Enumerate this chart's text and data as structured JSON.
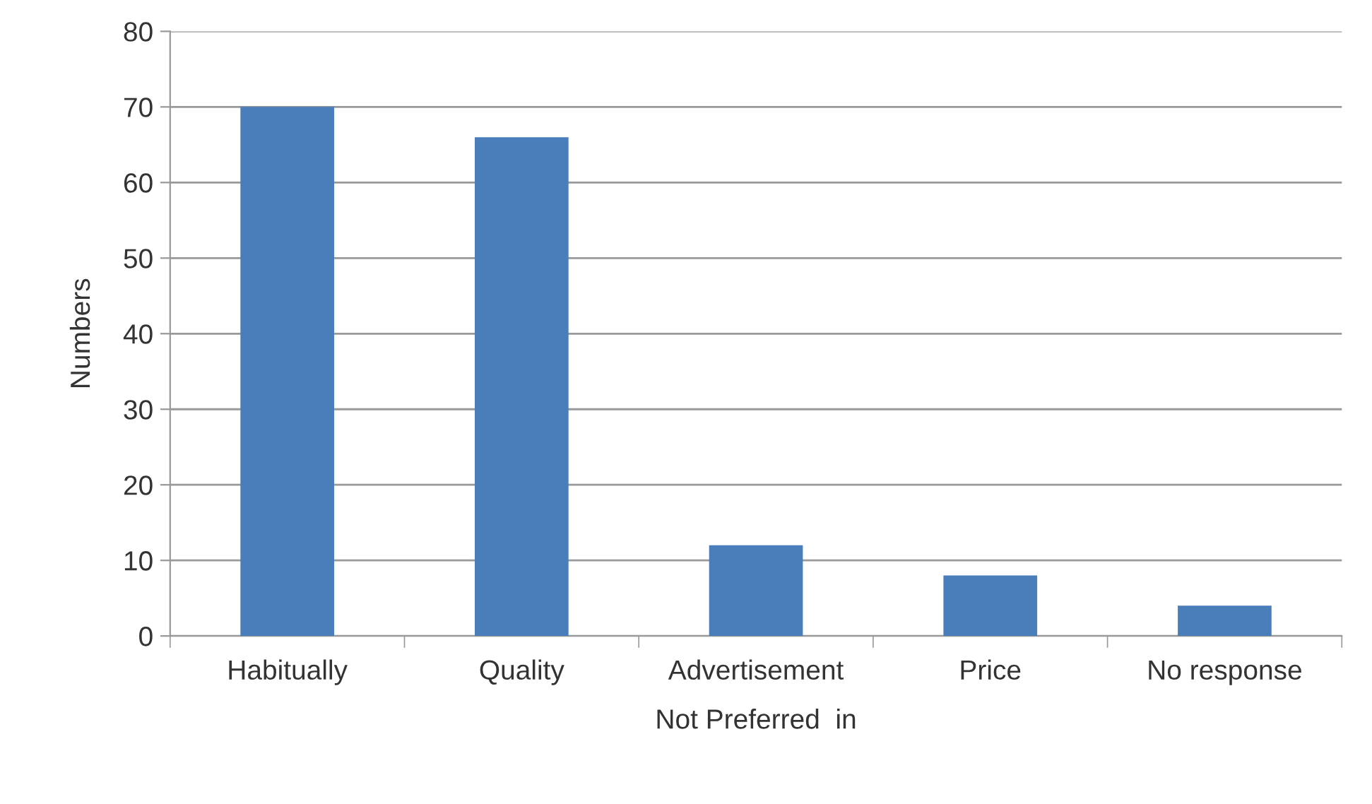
{
  "chart_data": {
    "type": "bar",
    "xlabel": "Not Preferred  in",
    "ylabel": "Numbers",
    "categories": [
      "Habitually",
      "Quality",
      "Advertisement",
      "Price",
      "No response"
    ],
    "values": [
      70,
      66,
      12,
      8,
      4
    ],
    "color": "#4a7ebb",
    "ylim": [
      0,
      80
    ],
    "yticks": [
      0,
      10,
      20,
      30,
      40,
      50,
      60,
      70,
      80
    ],
    "grid": "y"
  }
}
